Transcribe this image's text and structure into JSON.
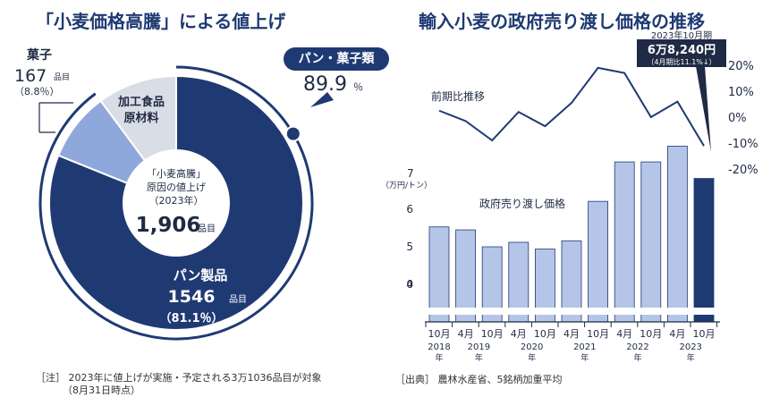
{
  "left": {
    "title": "「小麦価格高騰」による値上げ",
    "center": {
      "line1": "「小麦高騰」",
      "line2": "原因の値上げ",
      "line3": "（2023年）",
      "total": "1,906",
      "total_unit": "品目"
    },
    "bread_chip": "パン・菓子類",
    "bread_chip_value": "89.9",
    "bread_chip_unit": "％",
    "note_label": "［注］",
    "note_line1": "2023年に値上げが実施・予定される3万1036品目が対象",
    "note_line2": "（8月31日時点）"
  },
  "right": {
    "title": "輸入小麦の政府売り渡し価格の推移",
    "line_label": "前期比推移",
    "bar_label": "政府売り渡し価格",
    "callout_top": "2023年10月期",
    "callout_value": "6万8,240円",
    "callout_sub": "（4月期比11.1%↓）",
    "source_label": "［出典］",
    "source_text": "農林水産省、5銘柄加重平均"
  },
  "chart_data": [
    {
      "type": "pie",
      "title": "「小麦価格高騰」による値上げ",
      "total": 1906,
      "slices": [
        {
          "name": "パン製品",
          "value": 1546,
          "percent": 81.1,
          "unit": "品目",
          "color": "#1f3a73"
        },
        {
          "name": "菓子",
          "value": 167,
          "percent": 8.8,
          "unit": "品目",
          "color": "#8fa8dc"
        },
        {
          "name": "加工食品原材料",
          "value": 193,
          "color": "#d9dde6"
        }
      ],
      "labels": {
        "bread": {
          "name": "パン製品",
          "value": "1546",
          "unit": "品目",
          "pct": "（81.1％）"
        },
        "sweets": {
          "name": "菓子",
          "value": "167",
          "unit": "品目",
          "pct": "（8.8％）"
        },
        "processed": {
          "line1": "加工食品",
          "line2": "原材料"
        }
      },
      "colors": {
        "bread": "#1f3a73",
        "sweets": "#8fa8dc",
        "processed": "#d9dde6",
        "ring": "#1f3a73"
      }
    },
    {
      "type": "bar",
      "title": "輸入小麦の政府売り渡し価格の推移",
      "categories": [
        "2018年10月",
        "2019年4月",
        "2019年10月",
        "2020年4月",
        "2020年10月",
        "2021年4月",
        "2021年10月",
        "2022年4月",
        "2022年10月",
        "2023年4月",
        "2023年10月"
      ],
      "x_month_labels": [
        "10月",
        "4月",
        "10月",
        "4月",
        "10月",
        "4月",
        "10月",
        "4月",
        "10月",
        "4月",
        "10月"
      ],
      "year_labels": [
        {
          "year": "2018",
          "suffix": "年",
          "index": 0
        },
        {
          "year": "2019",
          "suffix": "年",
          "index": 1.5
        },
        {
          "year": "2020",
          "suffix": "年",
          "index": 3.5
        },
        {
          "year": "2021",
          "suffix": "年",
          "index": 5.5
        },
        {
          "year": "2022",
          "suffix": "年",
          "index": 7.5
        },
        {
          "year": "2023",
          "suffix": "年",
          "index": 9.5
        }
      ],
      "series": [
        {
          "name": "政府売り渡し価格",
          "axis": "left",
          "unit": "万円/トン",
          "values": [
            5.53,
            5.45,
            5.0,
            5.12,
            4.94,
            5.16,
            6.21,
            7.26,
            7.26,
            7.68,
            6.82
          ],
          "colors": [
            "#b4c5e8",
            "#b4c5e8",
            "#b4c5e8",
            "#b4c5e8",
            "#b4c5e8",
            "#b4c5e8",
            "#b4c5e8",
            "#b4c5e8",
            "#b4c5e8",
            "#b4c5e8",
            "#1f3a73"
          ]
        },
        {
          "name": "前期比推移",
          "axis": "right",
          "unit": "%",
          "values": [
            2.5,
            -1.5,
            -9.0,
            2.0,
            -3.5,
            5.5,
            19.0,
            17.0,
            0.0,
            6.0,
            -11.1
          ],
          "color": "#1f3a73"
        }
      ],
      "ylabel_left": "（万円/トン）",
      "ylabel_left_top": "7",
      "left_ticks": [
        "0",
        "4",
        "5",
        "6"
      ],
      "left_tick_values": [
        0,
        4,
        5,
        6
      ],
      "left_axis_break": true,
      "right_ticks": [
        "20%",
        "10%",
        "0%",
        "-10%",
        "-20%"
      ],
      "right_tick_values": [
        20,
        10,
        0,
        -10,
        -20
      ],
      "ylim_right": [
        -20,
        20
      ],
      "grid": false
    }
  ]
}
